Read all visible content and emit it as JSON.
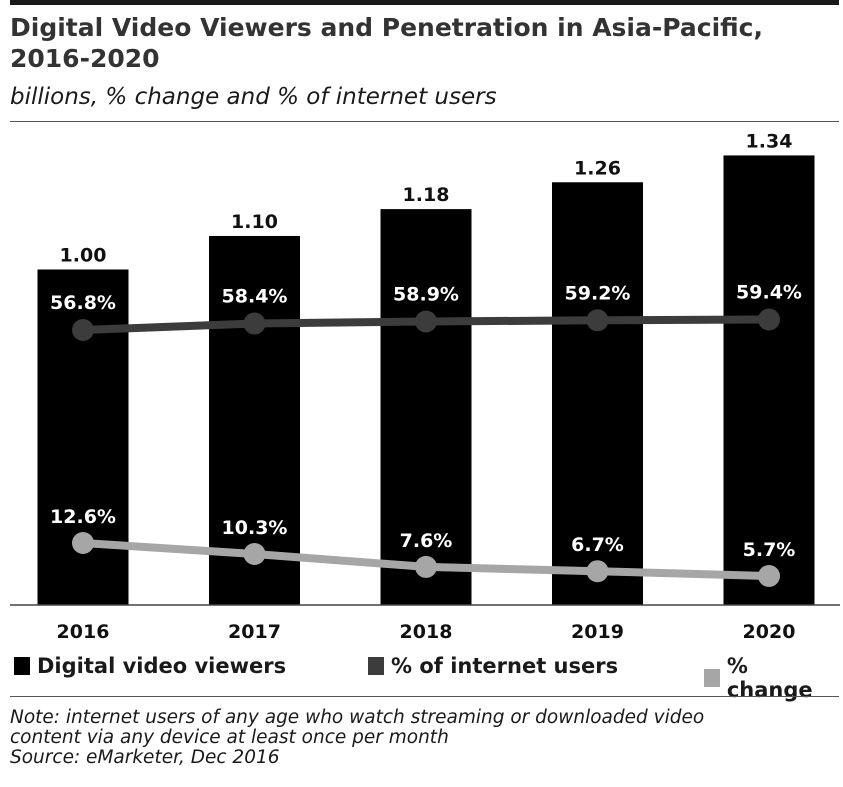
{
  "header": {
    "title": "Digital Video Viewers and Penetration in Asia-Pacific, 2016-2020",
    "subtitle": "billions, % change and % of internet users"
  },
  "legend": {
    "viewers": "Digital video viewers",
    "penetration": "% of internet users",
    "change": "% change"
  },
  "footer": {
    "note_line1": "Note: internet users of any age who watch streaming or downloaded video",
    "note_line2": "content via any device at least once per month",
    "source": "Source: eMarketer, Dec 2016"
  },
  "colors": {
    "bars": "#000000",
    "penetration_line": "#3c3c3c",
    "change_line": "#a6a6a6",
    "point_label": "#ffffff"
  },
  "chart_data": {
    "type": "bar",
    "categories": [
      "2016",
      "2017",
      "2018",
      "2019",
      "2020"
    ],
    "series": [
      {
        "name": "Digital video viewers",
        "type": "bar",
        "values": [
          1.0,
          1.1,
          1.18,
          1.26,
          1.34
        ],
        "labels": [
          "1.00",
          "1.10",
          "1.18",
          "1.26",
          "1.34"
        ]
      },
      {
        "name": "% of internet users",
        "type": "line",
        "values": [
          56.8,
          58.4,
          58.9,
          59.2,
          59.4
        ],
        "labels": [
          "56.8%",
          "58.4%",
          "58.9%",
          "59.2%",
          "59.4%"
        ]
      },
      {
        "name": "% change",
        "type": "line",
        "values": [
          12.6,
          10.3,
          7.6,
          6.7,
          5.7
        ],
        "labels": [
          "12.6%",
          "10.3%",
          "7.6%",
          "6.7%",
          "5.7%"
        ]
      }
    ],
    "grid": false,
    "legend_position": "bottom"
  }
}
